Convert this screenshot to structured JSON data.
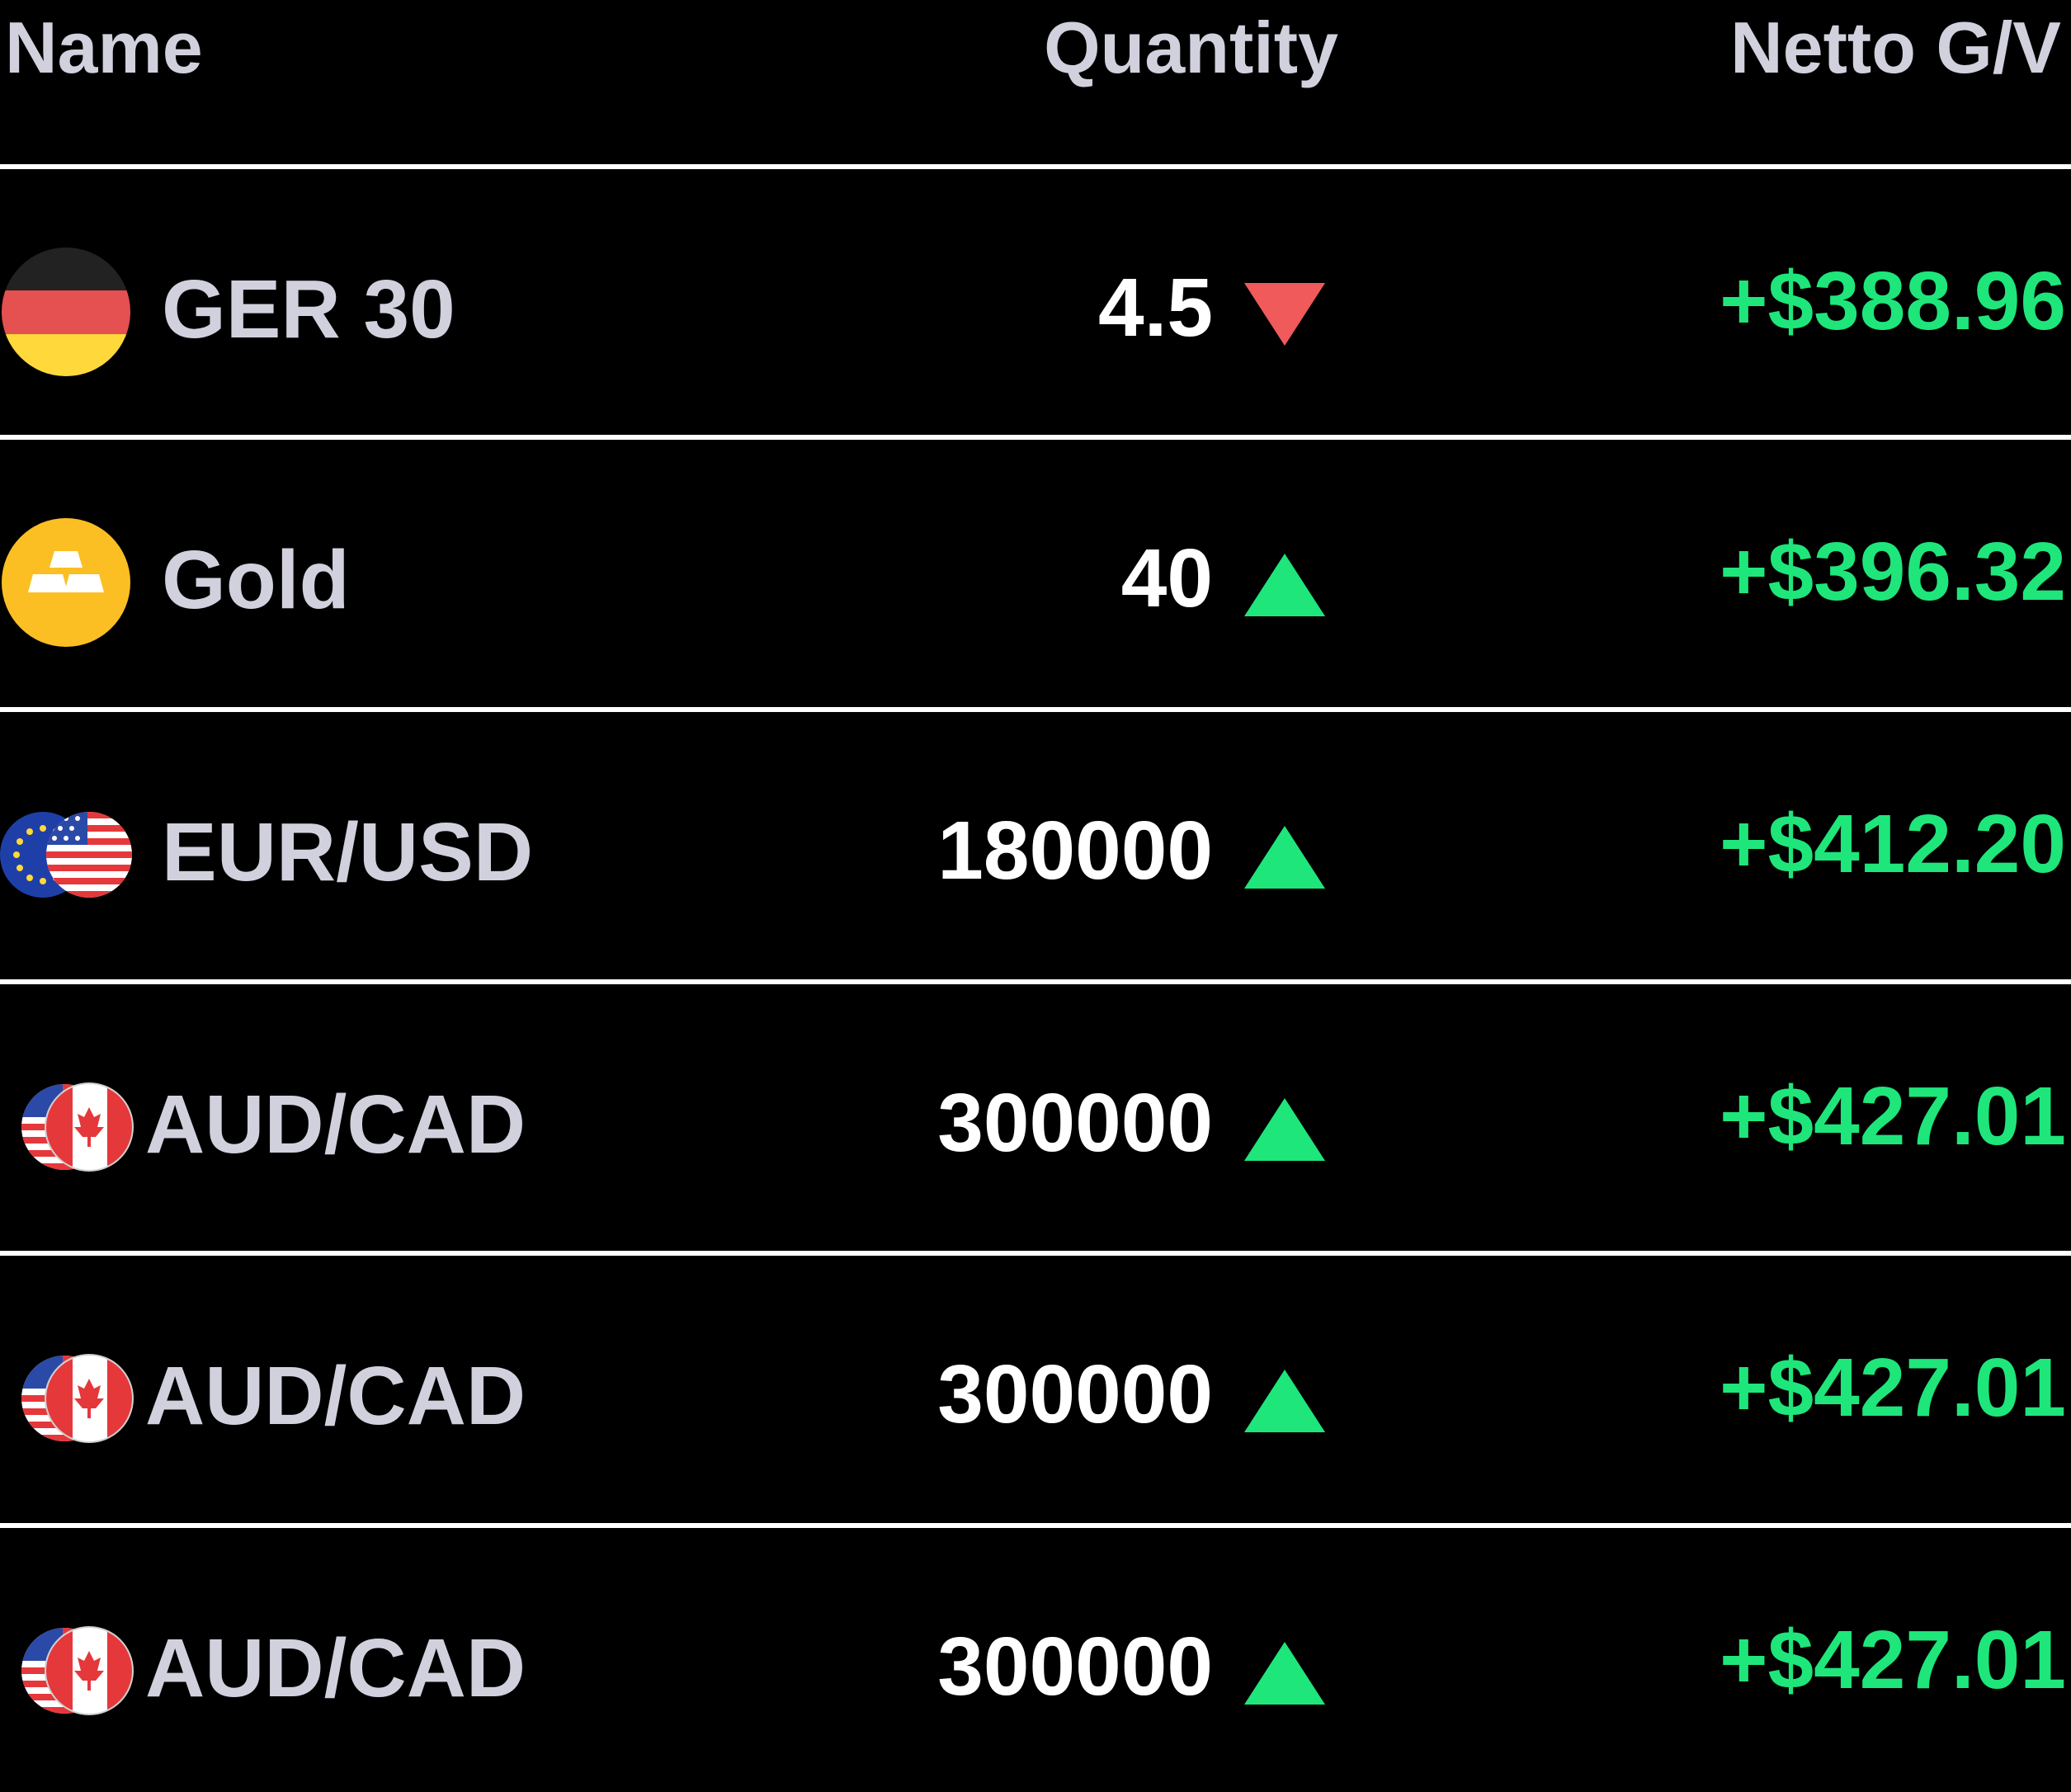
{
  "header": {
    "name_label": "Name",
    "quantity_label": "Quantity",
    "pnl_label": "Netto G/V"
  },
  "colors": {
    "background": "#000000",
    "header_text": "#d1d1de",
    "name_text": "#d1d1de",
    "quantity_text": "#ffffff",
    "pnl_text": "#1ee67a",
    "up_arrow": "#1ee67a",
    "down_arrow": "#f05a5a",
    "divider": "#ffffff"
  },
  "rows": [
    {
      "name": "GER 30",
      "icon": "germany-flag-icon",
      "quantity": "4.5",
      "direction": "down",
      "pnl": "+$388.96"
    },
    {
      "name": "Gold",
      "icon": "gold-bars-icon",
      "quantity": "40",
      "direction": "up",
      "pnl": "+$396.32"
    },
    {
      "name": "EUR/USD",
      "icon": "eu-us-flags-icon",
      "quantity": "180000",
      "direction": "up",
      "pnl": "+$412.20"
    },
    {
      "name": "AUD/CAD",
      "icon": "us-canada-flags-icon",
      "quantity": "300000",
      "direction": "up",
      "pnl": "+$427.01"
    },
    {
      "name": "AUD/CAD",
      "icon": "us-canada-flags-icon",
      "quantity": "300000",
      "direction": "up",
      "pnl": "+$427.01"
    },
    {
      "name": "AUD/CAD",
      "icon": "us-canada-flags-icon",
      "quantity": "300000",
      "direction": "up",
      "pnl": "+$427.01"
    }
  ]
}
